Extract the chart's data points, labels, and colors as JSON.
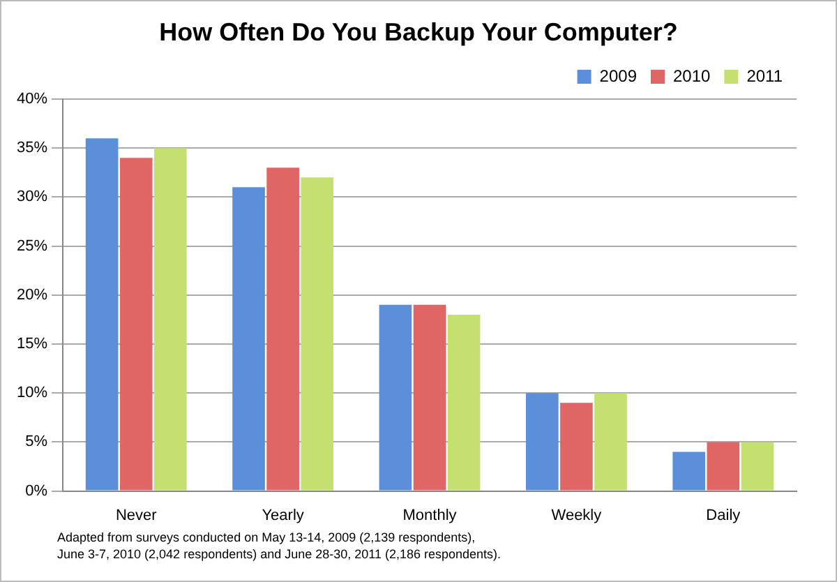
{
  "chart_data": {
    "type": "bar",
    "title": "How Often Do You Backup Your Computer?",
    "categories": [
      "Never",
      "Yearly",
      "Monthly",
      "Weekly",
      "Daily"
    ],
    "series": [
      {
        "name": "2009",
        "color": "#5b8fd9",
        "values": [
          36,
          31,
          19,
          10,
          4
        ]
      },
      {
        "name": "2010",
        "color": "#e06666",
        "values": [
          34,
          33,
          19,
          9,
          5
        ]
      },
      {
        "name": "2011",
        "color": "#c4e071",
        "values": [
          35,
          32,
          18,
          10,
          5
        ]
      }
    ],
    "ylim": [
      0,
      40
    ],
    "yticks": [
      {
        "value": 0,
        "label": "0%"
      },
      {
        "value": 5,
        "label": "5%"
      },
      {
        "value": 10,
        "label": "10%"
      },
      {
        "value": 15,
        "label": "15%"
      },
      {
        "value": 20,
        "label": "20%"
      },
      {
        "value": 25,
        "label": "25%"
      },
      {
        "value": 30,
        "label": "30%"
      },
      {
        "value": 35,
        "label": "35%"
      },
      {
        "value": 40,
        "label": "40%"
      }
    ],
    "grid": "y",
    "legend": "top right",
    "annotations": [
      "Adapted from surveys conducted on May 13-14, 2009 (2,139 respondents),",
      "June 3-7, 2010 (2,042 respondents) and June 28-30, 2011 (2,186 respondents)."
    ]
  }
}
